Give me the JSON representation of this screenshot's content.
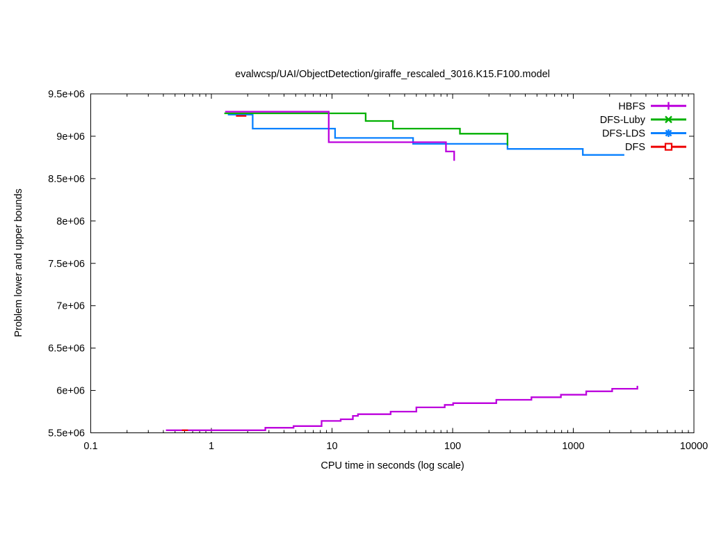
{
  "chart_data": {
    "type": "line",
    "subtype": "step-after",
    "title": "evalwcsp/UAI/ObjectDetection/giraffe_rescaled_3016.K15.F100.model",
    "xlabel": "CPU time in seconds (log scale)",
    "ylabel": "Problem lower and upper bounds",
    "x_scale": "log10",
    "xlim": [
      0.1,
      10000
    ],
    "ylim": [
      5500000,
      9500000
    ],
    "grid": false,
    "legend_position": "top-right-inside",
    "xticks": {
      "values": [
        0.1,
        1,
        10,
        100,
        1000,
        10000
      ],
      "labels": [
        "0.1",
        "1",
        "10",
        "100",
        "1000",
        "10000"
      ]
    },
    "yticks": {
      "values": [
        5500000,
        6000000,
        6500000,
        7000000,
        7500000,
        8000000,
        8500000,
        9000000,
        9500000
      ],
      "labels": [
        "5.5e+06",
        "6e+06",
        "6.5e+06",
        "7e+06",
        "7.5e+06",
        "8e+06",
        "8.5e+06",
        "9e+06",
        "9.5e+06"
      ]
    },
    "legend": [
      {
        "label": "HBFS",
        "color": "#bc00dd",
        "marker": "plus"
      },
      {
        "label": "DFS-Luby",
        "color": "#00b000",
        "marker": "cross"
      },
      {
        "label": "DFS-LDS",
        "color": "#0880ff",
        "marker": "asterisk"
      },
      {
        "label": "DFS",
        "color": "#ee0000",
        "marker": "square-open"
      }
    ],
    "series": [
      {
        "id": "DFS-LDS-upper",
        "name": "DFS-LDS",
        "bound": "upper",
        "color": "#0880ff",
        "points": [
          [
            1.37,
            9255000
          ],
          [
            2.2,
            9090000
          ],
          [
            10.6,
            8980000
          ],
          [
            47,
            8910000
          ],
          [
            285,
            8850000
          ],
          [
            1200,
            8780000
          ],
          [
            2650,
            8780000
          ]
        ]
      },
      {
        "id": "DFS-Luby-upper",
        "name": "DFS-Luby",
        "bound": "upper",
        "color": "#00b000",
        "points": [
          [
            1.28,
            9270000
          ],
          [
            19,
            9180000
          ],
          [
            32,
            9090000
          ],
          [
            115,
            9030000
          ],
          [
            285,
            8890000
          ]
        ]
      },
      {
        "id": "HBFS-upper",
        "name": "HBFS",
        "bound": "upper",
        "color": "#bc00dd",
        "points": [
          [
            1.3,
            9290000
          ],
          [
            9.4,
            8930000
          ],
          [
            88,
            8820000
          ],
          [
            103,
            8710000
          ]
        ]
      },
      {
        "id": "HBFS-lower",
        "name": "HBFS",
        "bound": "lower",
        "color": "#bc00dd",
        "points": [
          [
            0.42,
            5530000
          ],
          [
            2.8,
            5560000
          ],
          [
            4.8,
            5580000
          ],
          [
            8.2,
            5640000
          ],
          [
            11.8,
            5660000
          ],
          [
            14.9,
            5700000
          ],
          [
            16.4,
            5720000
          ],
          [
            30.6,
            5750000
          ],
          [
            50,
            5800000
          ],
          [
            86,
            5830000
          ],
          [
            101,
            5850000
          ],
          [
            230,
            5890000
          ],
          [
            450,
            5920000
          ],
          [
            790,
            5950000
          ],
          [
            1280,
            5990000
          ],
          [
            2100,
            6020000
          ],
          [
            3400,
            6055000
          ]
        ]
      },
      {
        "id": "DFS-upper",
        "name": "DFS",
        "bound": "upper",
        "color": "#ee0000",
        "points": [
          [
            1.6,
            9240000
          ],
          [
            1.95,
            9240000
          ]
        ]
      },
      {
        "id": "DFS-lower",
        "name": "DFS",
        "bound": "lower",
        "color": "#ee0000",
        "points": [
          [
            0.57,
            5530000
          ],
          [
            0.64,
            5530000
          ]
        ]
      }
    ]
  }
}
